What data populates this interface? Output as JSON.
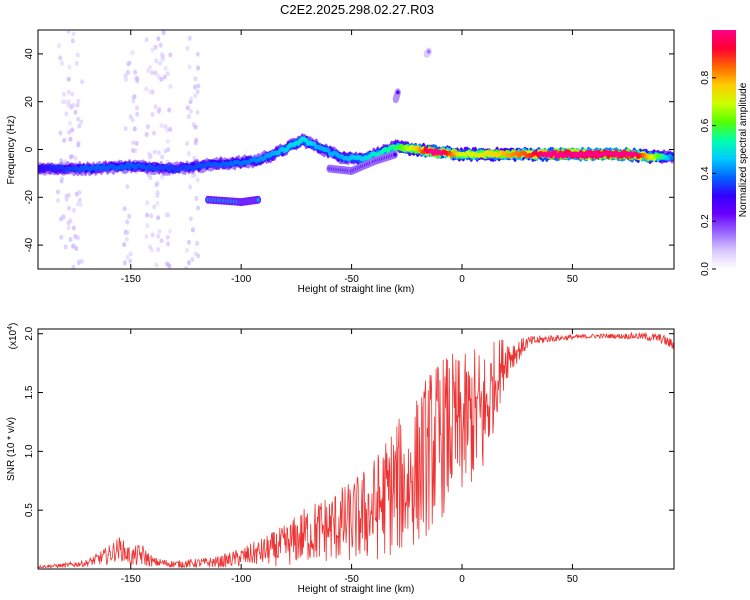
{
  "title": "C2E2.2025.298.02.27.R03",
  "colors": {
    "snr_line": "#ee3333",
    "frame": "#000000"
  },
  "colormap": [
    "#ffffff",
    "#d9c8ff",
    "#9966ff",
    "#6a00ff",
    "#3300ff",
    "#0066ff",
    "#00ccff",
    "#00ffaa",
    "#55ff00",
    "#ccff00",
    "#ffcc00",
    "#ff6600",
    "#ff0033",
    "#ff0088"
  ],
  "chart_data": [
    {
      "type": "heatmap",
      "xlabel": "Height of straight line (km)",
      "ylabel": "Frequency (Hz)",
      "xlim": [
        -192,
        96
      ],
      "ylim": [
        -50,
        50
      ],
      "xticks": [
        -150,
        -100,
        -50,
        0,
        50
      ],
      "xtick_labels": [
        "-150",
        "-100",
        "-50",
        "0",
        "50"
      ],
      "yticks": [
        -40,
        -20,
        0,
        20,
        40
      ],
      "ytick_labels": [
        "-40",
        "-20",
        "0",
        "20",
        "40"
      ],
      "ridge": [
        {
          "x": -192,
          "y": -8,
          "a": 0.25
        },
        {
          "x": -170,
          "y": -8,
          "a": 0.3
        },
        {
          "x": -150,
          "y": -7,
          "a": 0.3
        },
        {
          "x": -130,
          "y": -8,
          "a": 0.28
        },
        {
          "x": -110,
          "y": -6,
          "a": 0.3
        },
        {
          "x": -95,
          "y": -5,
          "a": 0.32
        },
        {
          "x": -85,
          "y": -2,
          "a": 0.35
        },
        {
          "x": -72,
          "y": 4,
          "a": 0.4
        },
        {
          "x": -65,
          "y": 1,
          "a": 0.35
        },
        {
          "x": -55,
          "y": -3,
          "a": 0.35
        },
        {
          "x": -45,
          "y": -4,
          "a": 0.38
        },
        {
          "x": -30,
          "y": 1,
          "a": 0.45
        },
        {
          "x": -20,
          "y": 0,
          "a": 0.62
        },
        {
          "x": -12,
          "y": -1,
          "a": 0.88
        },
        {
          "x": 0,
          "y": -2,
          "a": 0.55
        },
        {
          "x": 15,
          "y": -2,
          "a": 0.6
        },
        {
          "x": 30,
          "y": -2,
          "a": 0.7
        },
        {
          "x": 50,
          "y": -2,
          "a": 0.95
        },
        {
          "x": 75,
          "y": -2,
          "a": 0.9
        },
        {
          "x": 85,
          "y": -3,
          "a": 0.6
        },
        {
          "x": 96,
          "y": -3,
          "a": 0.3
        }
      ],
      "branches": [
        {
          "points": [
            [
              -115,
              -21
            ],
            [
              -100,
              -22
            ],
            [
              -92,
              -21
            ]
          ],
          "a": 0.35
        },
        {
          "points": [
            [
              -60,
              -8
            ],
            [
              -50,
              -9
            ],
            [
              -40,
              -5
            ],
            [
              -30,
              -2
            ]
          ],
          "a": 0.25
        },
        {
          "points": [
            [
              -30,
              21
            ],
            [
              -29,
              24
            ]
          ],
          "a": 0.2
        },
        {
          "points": [
            [
              -16,
              40
            ],
            [
              -15,
              41
            ]
          ],
          "a": 0.12
        }
      ],
      "colorbar": {
        "label": "Normalized spectral amplitude",
        "range": [
          0,
          1
        ],
        "ticks": [
          0.0,
          0.2,
          0.4,
          0.6,
          0.8
        ],
        "tick_labels": [
          "0.0",
          "0.2",
          "0.4",
          "0.6",
          "0.8"
        ]
      }
    },
    {
      "type": "line",
      "xlabel": "Height of straight line (km)",
      "ylabel": "SNR (10 * v/v)",
      "y_multiplier": "(x10",
      "y_multiplier_exp": "4",
      "y_multiplier_close": ")",
      "xlim": [
        -192,
        96
      ],
      "ylim": [
        0,
        2.04
      ],
      "xticks": [
        -150,
        -100,
        -50,
        0,
        50
      ],
      "xtick_labels": [
        "-150",
        "-100",
        "-50",
        "0",
        "50"
      ],
      "yticks": [
        0.5,
        1.0,
        1.5,
        2.0
      ],
      "ytick_labels": [
        "0.5",
        "1.0",
        "1.5",
        "2.0"
      ],
      "series": [
        {
          "x": [
            -192,
            -180,
            -170,
            -160,
            -155,
            -150,
            -145,
            -140,
            -130,
            -120,
            -110,
            -100,
            -90,
            -80,
            -70,
            -60,
            -50,
            -40,
            -35,
            -30,
            -25,
            -20,
            -15,
            -10,
            -5,
            0,
            5,
            10,
            15,
            20,
            25,
            30,
            40,
            50,
            60,
            70,
            80,
            90,
            96
          ],
          "y": [
            0.02,
            0.03,
            0.05,
            0.12,
            0.18,
            0.1,
            0.12,
            0.06,
            0.04,
            0.05,
            0.06,
            0.1,
            0.15,
            0.2,
            0.3,
            0.35,
            0.4,
            0.5,
            0.6,
            0.7,
            0.7,
            0.85,
            1.0,
            1.1,
            1.2,
            1.2,
            1.3,
            1.3,
            1.6,
            1.8,
            1.85,
            1.93,
            1.96,
            1.97,
            1.98,
            1.98,
            1.98,
            1.96,
            1.9
          ],
          "noise": [
            0.01,
            0.02,
            0.03,
            0.08,
            0.1,
            0.08,
            0.1,
            0.04,
            0.03,
            0.04,
            0.05,
            0.08,
            0.12,
            0.18,
            0.25,
            0.3,
            0.35,
            0.45,
            0.5,
            0.6,
            0.55,
            0.65,
            0.7,
            0.7,
            0.65,
            0.6,
            0.6,
            0.6,
            0.35,
            0.2,
            0.1,
            0.05,
            0.03,
            0.02,
            0.02,
            0.02,
            0.03,
            0.04,
            0.05
          ]
        }
      ]
    }
  ]
}
